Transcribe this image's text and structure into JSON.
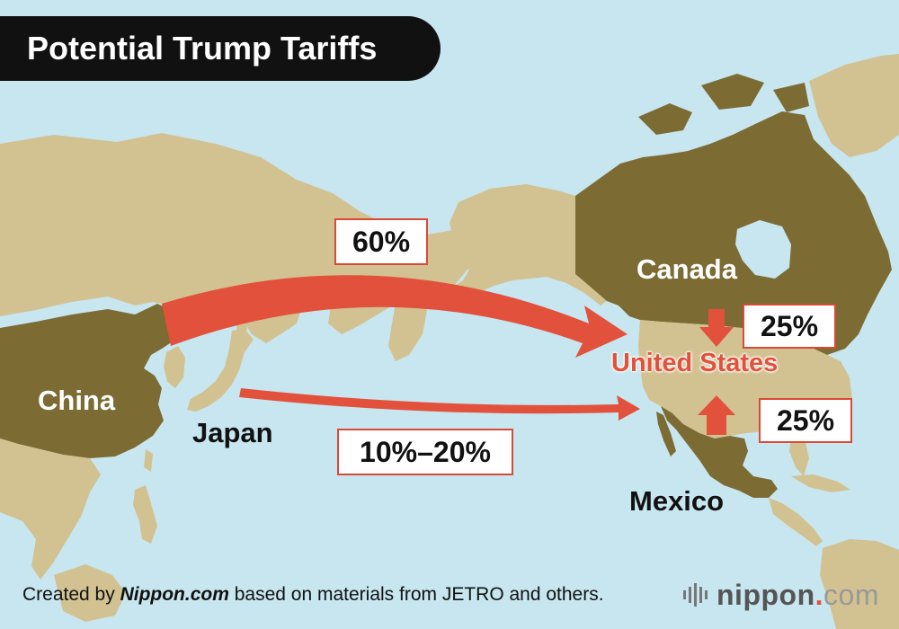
{
  "title": "Potential Trump Tariffs",
  "countries": {
    "china": "China",
    "japan": "Japan",
    "canada": "Canada",
    "mexico": "Mexico",
    "united_states": "United States"
  },
  "tariffs": {
    "china": "60%",
    "japan": "10%–20%",
    "canada": "25%",
    "mexico": "25%"
  },
  "credit": {
    "prefix": "Created by ",
    "publisher": "Nippon.com",
    "suffix": " based on materials from JETRO and others."
  },
  "logo": {
    "name": "nippon",
    "dot": ".",
    "tld": "com"
  },
  "colors": {
    "ocean": "#c7e6ef",
    "highlighted_land": "#7c6c33",
    "other_land": "#d2c291",
    "arrow": "#e2513c",
    "us_label": "#e2513c"
  }
}
